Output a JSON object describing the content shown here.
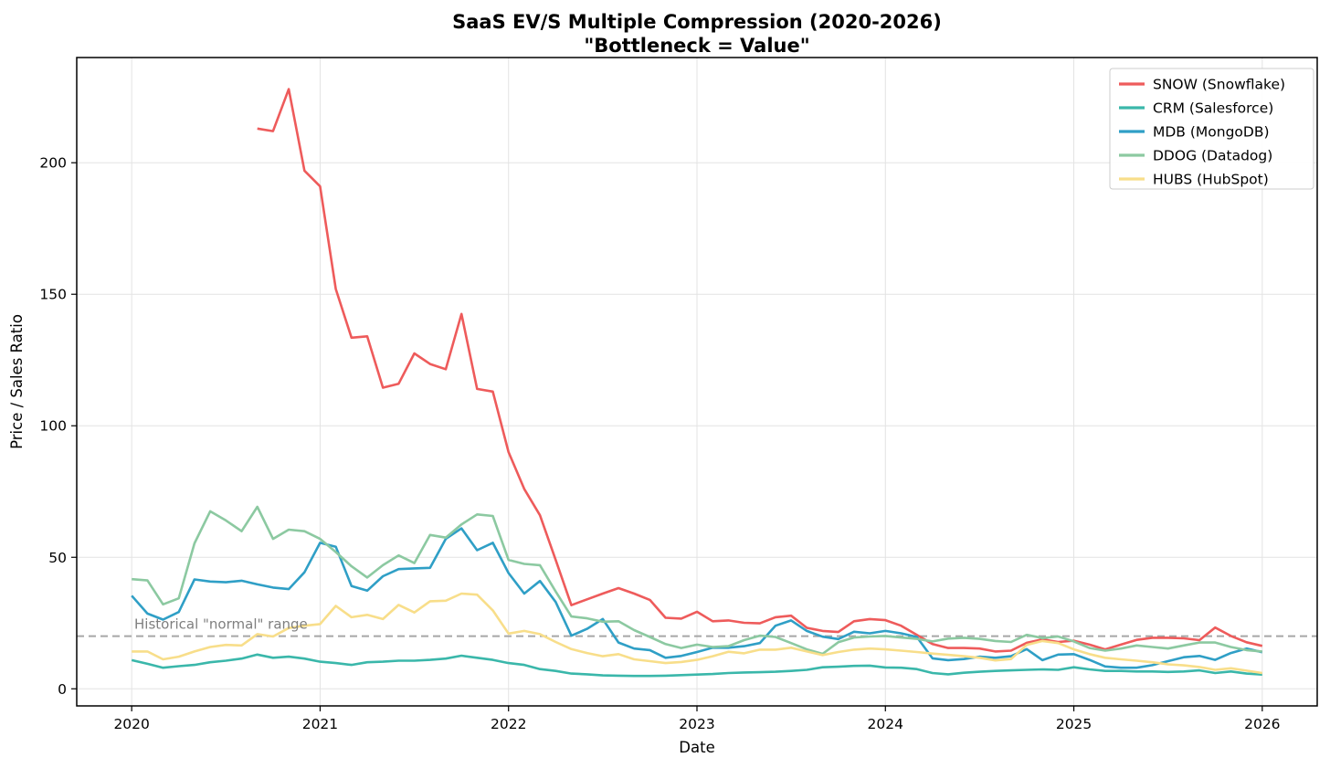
{
  "chart_data": {
    "type": "line",
    "title": "SaaS EV/S Multiple Compression (2020-2026)",
    "subtitle": "\"Bottleneck = Value\"",
    "xlabel": "Date",
    "ylabel": "Price / Sales Ratio",
    "grid": true,
    "legend_position": "upper right",
    "axes": {
      "ylim": [
        -6.5,
        240
      ],
      "xlim_months": [
        -3.5,
        75.5
      ]
    },
    "y_ticks": [
      0,
      50,
      100,
      150,
      200
    ],
    "x_ticks": [
      {
        "month": 0,
        "label": "2020"
      },
      {
        "month": 12,
        "label": "2021"
      },
      {
        "month": 24,
        "label": "2022"
      },
      {
        "month": 36,
        "label": "2023"
      },
      {
        "month": 48,
        "label": "2024"
      },
      {
        "month": 60,
        "label": "2025"
      },
      {
        "month": 72,
        "label": "2026"
      }
    ],
    "reference_line": {
      "value": 20,
      "style": "dashed",
      "color": "#a6a6a6",
      "label": "Historical \"normal\" range",
      "label_color": "#7f7f7f"
    },
    "months": [
      "2020-01",
      "2020-02",
      "2020-03",
      "2020-04",
      "2020-05",
      "2020-06",
      "2020-07",
      "2020-08",
      "2020-09",
      "2020-10",
      "2020-11",
      "2020-12",
      "2021-01",
      "2021-02",
      "2021-03",
      "2021-04",
      "2021-05",
      "2021-06",
      "2021-07",
      "2021-08",
      "2021-09",
      "2021-10",
      "2021-11",
      "2021-12",
      "2022-01",
      "2022-02",
      "2022-03",
      "2022-04",
      "2022-05",
      "2022-06",
      "2022-07",
      "2022-08",
      "2022-09",
      "2022-10",
      "2022-11",
      "2022-12",
      "2023-01",
      "2023-02",
      "2023-03",
      "2023-04",
      "2023-05",
      "2023-06",
      "2023-07",
      "2023-08",
      "2023-09",
      "2023-10",
      "2023-11",
      "2023-12",
      "2024-01",
      "2024-02",
      "2024-03",
      "2024-04",
      "2024-05",
      "2024-06",
      "2024-07",
      "2024-08",
      "2024-09",
      "2024-10",
      "2024-11",
      "2024-12",
      "2025-01",
      "2025-02",
      "2025-03",
      "2025-04",
      "2025-05",
      "2025-06",
      "2025-07",
      "2025-08",
      "2025-09",
      "2025-10",
      "2025-11",
      "2025-12",
      "2026-01"
    ],
    "series": [
      {
        "ticker": "SNOW",
        "label": "SNOW (Snowflake)",
        "color": "#ee5b5b",
        "values": [
          null,
          null,
          null,
          null,
          null,
          null,
          null,
          null,
          213,
          212,
          228,
          197,
          191,
          152,
          133.5,
          134,
          114.5,
          116,
          127.5,
          123.5,
          121.5,
          142.5,
          114,
          113,
          90,
          76,
          66,
          49,
          31.8,
          34,
          36.2,
          38.3,
          36.2,
          33.8,
          27,
          26.7,
          29.3,
          25.7,
          26,
          25.1,
          24.9,
          27.2,
          27.8,
          23.2,
          22,
          21.6,
          25.7,
          26.5,
          26.1,
          24,
          20.5,
          17,
          15.5,
          15.5,
          15.3,
          14.2,
          14.5,
          17.5,
          18.8,
          17.8,
          18.3,
          16.8,
          15,
          16.8,
          18.6,
          19.4,
          19.4,
          19.2,
          18.5,
          23.3,
          20.1,
          17.7,
          16.3
        ]
      },
      {
        "ticker": "CRM",
        "label": "CRM (Salesforce)",
        "color": "#3ab7aa",
        "values": [
          10.9,
          9.5,
          8.0,
          8.6,
          9.1,
          10.1,
          10.7,
          11.5,
          13.0,
          11.8,
          12.2,
          11.5,
          10.3,
          9.8,
          9.1,
          10.1,
          10.3,
          10.7,
          10.7,
          11.0,
          11.5,
          12.6,
          11.8,
          11.0,
          9.8,
          9.1,
          7.5,
          6.8,
          5.8,
          5.5,
          5.1,
          5.0,
          4.9,
          4.9,
          5.0,
          5.2,
          5.4,
          5.6,
          6.0,
          6.2,
          6.3,
          6.5,
          6.8,
          7.2,
          8.2,
          8.4,
          8.7,
          8.8,
          8.1,
          8.0,
          7.5,
          6.0,
          5.5,
          6.1,
          6.5,
          6.8,
          7.0,
          7.2,
          7.4,
          7.2,
          8.2,
          7.4,
          6.8,
          6.8,
          6.6,
          6.6,
          6.4,
          6.6,
          7.0,
          6.0,
          6.6,
          5.8,
          5.4
        ]
      },
      {
        "ticker": "MDB",
        "label": "MDB (MongoDB)",
        "color": "#2f9fc6",
        "values": [
          35.4,
          28.6,
          26.3,
          29.2,
          41.6,
          40.8,
          40.5,
          41.1,
          39.7,
          38.5,
          37.9,
          44.3,
          55.5,
          54.0,
          39.1,
          37.3,
          42.8,
          45.5,
          45.8,
          46.0,
          57.0,
          61.0,
          52.7,
          55.5,
          44.0,
          36.2,
          41.0,
          33.0,
          20.2,
          22.8,
          26.5,
          17.6,
          15.3,
          14.7,
          11.8,
          12.5,
          14.0,
          15.6,
          15.6,
          16.2,
          17.4,
          24.0,
          26.0,
          22.0,
          19.8,
          18.9,
          21.7,
          21.1,
          22.0,
          21.1,
          19.7,
          11.6,
          10.9,
          11.3,
          12.2,
          11.8,
          12.4,
          15.1,
          10.9,
          13.0,
          13.2,
          11.0,
          8.5,
          8.0,
          8.0,
          9.0,
          10.5,
          12.0,
          12.5,
          11.0,
          13.6,
          15.3,
          13.9
        ]
      },
      {
        "ticker": "DDOG",
        "label": "DDOG (Datadog)",
        "color": "#8cc9a1",
        "values": [
          41.7,
          41.2,
          32.1,
          34.4,
          55.3,
          67.5,
          64.0,
          59.9,
          69.2,
          57.0,
          60.5,
          59.9,
          57.0,
          52.0,
          46.6,
          42.3,
          47.0,
          50.7,
          47.8,
          58.5,
          57.5,
          62.5,
          66.3,
          65.7,
          49.0,
          47.5,
          47.0,
          37.0,
          27.5,
          26.8,
          25.5,
          25.7,
          22.3,
          19.7,
          17.0,
          15.5,
          16.8,
          15.9,
          16.2,
          18.5,
          20.2,
          19.7,
          17.4,
          15.0,
          13.3,
          17.7,
          19.5,
          19.9,
          20.1,
          19.5,
          19.0,
          18.0,
          19.1,
          19.4,
          19.0,
          18.2,
          17.8,
          20.5,
          19.3,
          19.9,
          18.0,
          15.5,
          14.5,
          15.3,
          16.5,
          15.9,
          15.3,
          16.5,
          17.6,
          17.6,
          15.9,
          14.7,
          14.2
        ]
      },
      {
        "ticker": "HUBS",
        "label": "HUBS (HubSpot)",
        "color": "#f8de8a",
        "values": [
          14.2,
          14.2,
          11.2,
          12.2,
          14.2,
          15.9,
          16.7,
          16.5,
          20.8,
          19.9,
          23.1,
          24.0,
          24.6,
          31.5,
          27.2,
          28.1,
          26.5,
          31.9,
          29.0,
          33.3,
          33.5,
          36.2,
          35.8,
          29.8,
          21.0,
          22.0,
          20.8,
          17.8,
          15.1,
          13.6,
          12.4,
          13.2,
          11.2,
          10.5,
          9.8,
          10.2,
          11.0,
          12.4,
          14.1,
          13.5,
          14.9,
          14.9,
          15.6,
          14.2,
          12.8,
          14.0,
          14.9,
          15.3,
          15.0,
          14.5,
          14.0,
          13.4,
          12.9,
          12.4,
          11.8,
          10.8,
          11.3,
          16.7,
          18.2,
          17.4,
          15.0,
          13.2,
          11.8,
          11.2,
          10.7,
          10.1,
          9.3,
          8.9,
          8.3,
          7.2,
          7.8,
          6.9,
          6.0
        ]
      }
    ],
    "colors": {
      "grid": "#e3e3e3",
      "spine": "#000000",
      "background": "#ffffff"
    }
  }
}
